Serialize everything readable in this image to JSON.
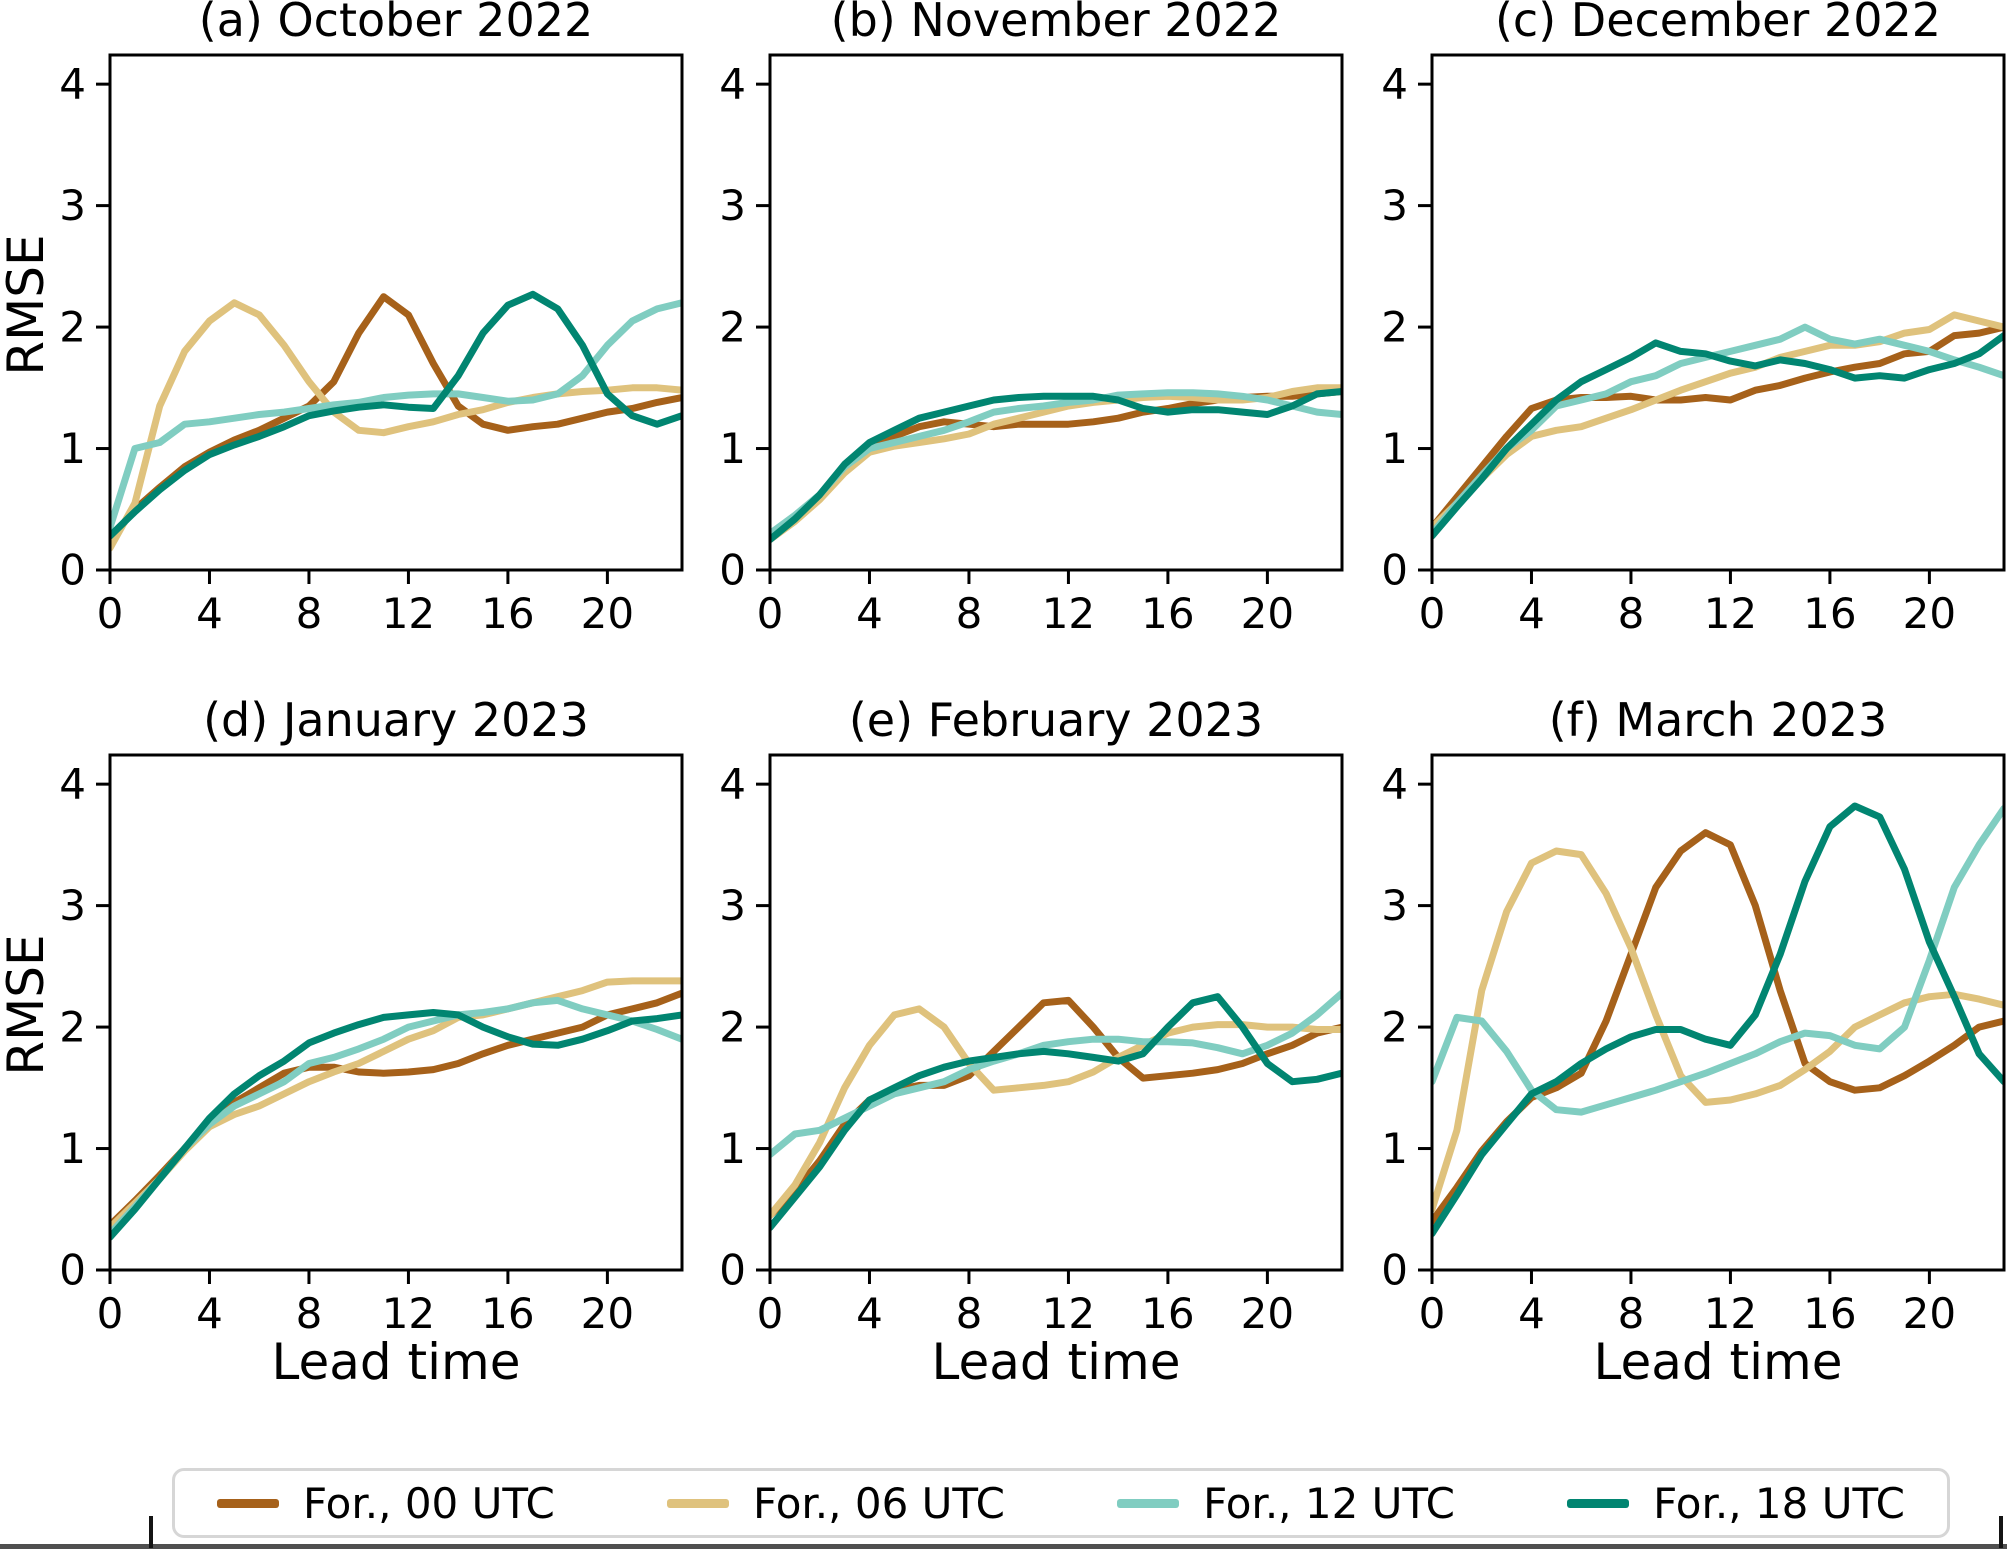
{
  "figure": {
    "ylabel": "RMSE",
    "xlabel": "Lead time",
    "background": "#ffffff"
  },
  "legend": {
    "position": "bottom",
    "entries": [
      {
        "label": "For., 00 UTC",
        "color": "#a6611a"
      },
      {
        "label": "For., 06 UTC",
        "color": "#dfc27d"
      },
      {
        "label": "For., 12 UTC",
        "color": "#80cdc1"
      },
      {
        "label": "For., 18 UTC",
        "color": "#018571"
      }
    ]
  },
  "lead_times": [
    0,
    1,
    2,
    3,
    4,
    5,
    6,
    7,
    8,
    9,
    10,
    11,
    12,
    13,
    14,
    15,
    16,
    17,
    18,
    19,
    20,
    21,
    22,
    23
  ],
  "chart_data": [
    {
      "id": "a",
      "type": "line",
      "title": "(a) October 2022",
      "xlim": [
        0,
        23
      ],
      "ylim": [
        0,
        4.24
      ],
      "x_ticks": [
        0,
        4,
        8,
        12,
        16,
        20
      ],
      "y_ticks": [
        0,
        1,
        2,
        3,
        4
      ],
      "grid": false,
      "series": [
        {
          "name": "For., 00 UTC",
          "color": "#a6611a",
          "values": [
            0.25,
            0.5,
            0.68,
            0.85,
            0.97,
            1.07,
            1.15,
            1.25,
            1.35,
            1.55,
            1.95,
            2.25,
            2.1,
            1.7,
            1.35,
            1.2,
            1.15,
            1.18,
            1.2,
            1.25,
            1.3,
            1.33,
            1.38,
            1.42
          ]
        },
        {
          "name": "For., 06 UTC",
          "color": "#dfc27d",
          "values": [
            0.18,
            0.55,
            1.35,
            1.8,
            2.05,
            2.2,
            2.1,
            1.85,
            1.55,
            1.3,
            1.15,
            1.13,
            1.18,
            1.22,
            1.28,
            1.32,
            1.38,
            1.42,
            1.45,
            1.47,
            1.48,
            1.5,
            1.5,
            1.48
          ]
        },
        {
          "name": "For., 12 UTC",
          "color": "#80cdc1",
          "values": [
            0.35,
            1.0,
            1.05,
            1.2,
            1.22,
            1.25,
            1.28,
            1.3,
            1.33,
            1.36,
            1.38,
            1.42,
            1.44,
            1.45,
            1.45,
            1.42,
            1.39,
            1.4,
            1.45,
            1.6,
            1.85,
            2.05,
            2.15,
            2.2
          ]
        },
        {
          "name": "For., 18 UTC",
          "color": "#018571",
          "values": [
            0.28,
            0.48,
            0.66,
            0.82,
            0.95,
            1.03,
            1.1,
            1.18,
            1.27,
            1.31,
            1.34,
            1.36,
            1.34,
            1.33,
            1.6,
            1.95,
            2.18,
            2.27,
            2.15,
            1.85,
            1.45,
            1.27,
            1.2,
            1.27
          ]
        }
      ]
    },
    {
      "id": "b",
      "type": "line",
      "title": "(b) November 2022",
      "xlim": [
        0,
        23
      ],
      "ylim": [
        0,
        4.24
      ],
      "x_ticks": [
        0,
        4,
        8,
        12,
        16,
        20
      ],
      "y_ticks": [
        0,
        1,
        2,
        3,
        4
      ],
      "grid": false,
      "series": [
        {
          "name": "For., 00 UTC",
          "color": "#a6611a",
          "values": [
            0.27,
            0.42,
            0.6,
            0.83,
            1.0,
            1.1,
            1.18,
            1.22,
            1.2,
            1.18,
            1.2,
            1.2,
            1.2,
            1.22,
            1.25,
            1.3,
            1.33,
            1.37,
            1.4,
            1.42,
            1.43,
            1.43,
            1.45,
            1.47
          ]
        },
        {
          "name": "For., 06 UTC",
          "color": "#dfc27d",
          "values": [
            0.25,
            0.4,
            0.58,
            0.8,
            0.97,
            1.02,
            1.05,
            1.08,
            1.12,
            1.2,
            1.25,
            1.3,
            1.35,
            1.38,
            1.4,
            1.42,
            1.43,
            1.42,
            1.4,
            1.4,
            1.42,
            1.47,
            1.5,
            1.5
          ]
        },
        {
          "name": "For., 12 UTC",
          "color": "#80cdc1",
          "values": [
            0.3,
            0.45,
            0.62,
            0.85,
            1.0,
            1.05,
            1.1,
            1.15,
            1.22,
            1.3,
            1.33,
            1.35,
            1.38,
            1.4,
            1.44,
            1.45,
            1.46,
            1.46,
            1.45,
            1.43,
            1.4,
            1.35,
            1.3,
            1.28
          ]
        },
        {
          "name": "For., 18 UTC",
          "color": "#018571",
          "values": [
            0.25,
            0.42,
            0.62,
            0.87,
            1.05,
            1.15,
            1.25,
            1.3,
            1.35,
            1.4,
            1.42,
            1.43,
            1.43,
            1.43,
            1.4,
            1.33,
            1.3,
            1.32,
            1.32,
            1.3,
            1.28,
            1.35,
            1.45,
            1.47
          ]
        }
      ]
    },
    {
      "id": "c",
      "type": "line",
      "title": "(c) December 2022",
      "xlim": [
        0,
        23
      ],
      "ylim": [
        0,
        4.24
      ],
      "x_ticks": [
        0,
        4,
        8,
        12,
        16,
        20
      ],
      "y_ticks": [
        0,
        1,
        2,
        3,
        4
      ],
      "grid": false,
      "series": [
        {
          "name": "For., 00 UTC",
          "color": "#a6611a",
          "values": [
            0.35,
            0.6,
            0.85,
            1.1,
            1.33,
            1.4,
            1.42,
            1.42,
            1.43,
            1.4,
            1.4,
            1.42,
            1.4,
            1.48,
            1.52,
            1.58,
            1.63,
            1.67,
            1.7,
            1.78,
            1.8,
            1.93,
            1.95,
            2.0
          ]
        },
        {
          "name": "For., 06 UTC",
          "color": "#dfc27d",
          "values": [
            0.35,
            0.55,
            0.75,
            0.95,
            1.1,
            1.15,
            1.18,
            1.25,
            1.32,
            1.4,
            1.48,
            1.55,
            1.62,
            1.67,
            1.75,
            1.8,
            1.85,
            1.85,
            1.88,
            1.95,
            1.98,
            2.1,
            2.05,
            2.0
          ]
        },
        {
          "name": "For., 12 UTC",
          "color": "#80cdc1",
          "values": [
            0.3,
            0.55,
            0.78,
            1.0,
            1.15,
            1.35,
            1.4,
            1.45,
            1.55,
            1.6,
            1.7,
            1.75,
            1.8,
            1.85,
            1.9,
            2.0,
            1.9,
            1.86,
            1.9,
            1.85,
            1.8,
            1.73,
            1.67,
            1.6
          ]
        },
        {
          "name": "For., 18 UTC",
          "color": "#018571",
          "values": [
            0.28,
            0.52,
            0.75,
            1.0,
            1.2,
            1.4,
            1.55,
            1.65,
            1.75,
            1.87,
            1.8,
            1.78,
            1.72,
            1.68,
            1.73,
            1.7,
            1.65,
            1.58,
            1.6,
            1.58,
            1.65,
            1.7,
            1.78,
            1.93
          ]
        }
      ]
    },
    {
      "id": "d",
      "type": "line",
      "title": "(d) January 2023",
      "xlim": [
        0,
        23
      ],
      "ylim": [
        0,
        4.24
      ],
      "x_ticks": [
        0,
        4,
        8,
        12,
        16,
        20
      ],
      "y_ticks": [
        0,
        1,
        2,
        3,
        4
      ],
      "grid": false,
      "series": [
        {
          "name": "For., 00 UTC",
          "color": "#a6611a",
          "values": [
            0.37,
            0.57,
            0.78,
            1.0,
            1.22,
            1.38,
            1.5,
            1.62,
            1.67,
            1.67,
            1.63,
            1.62,
            1.63,
            1.65,
            1.7,
            1.78,
            1.85,
            1.9,
            1.95,
            2.0,
            2.1,
            2.15,
            2.2,
            2.28
          ]
        },
        {
          "name": "For., 06 UTC",
          "color": "#dfc27d",
          "values": [
            0.35,
            0.55,
            0.75,
            0.98,
            1.18,
            1.28,
            1.35,
            1.45,
            1.55,
            1.63,
            1.7,
            1.8,
            1.9,
            1.97,
            2.08,
            2.1,
            2.15,
            2.2,
            2.25,
            2.3,
            2.37,
            2.38,
            2.38,
            2.38
          ]
        },
        {
          "name": "For., 12 UTC",
          "color": "#80cdc1",
          "values": [
            0.3,
            0.52,
            0.75,
            1.0,
            1.2,
            1.35,
            1.45,
            1.55,
            1.7,
            1.75,
            1.82,
            1.9,
            2.0,
            2.05,
            2.1,
            2.12,
            2.15,
            2.2,
            2.22,
            2.15,
            2.1,
            2.05,
            1.98,
            1.9
          ]
        },
        {
          "name": "For., 18 UTC",
          "color": "#018571",
          "values": [
            0.27,
            0.5,
            0.75,
            1.0,
            1.25,
            1.45,
            1.6,
            1.72,
            1.87,
            1.95,
            2.02,
            2.08,
            2.1,
            2.12,
            2.1,
            2.0,
            1.92,
            1.86,
            1.85,
            1.9,
            1.97,
            2.05,
            2.07,
            2.1
          ]
        }
      ]
    },
    {
      "id": "e",
      "type": "line",
      "title": "(e) February 2023",
      "xlim": [
        0,
        23
      ],
      "ylim": [
        0,
        4.24
      ],
      "x_ticks": [
        0,
        4,
        8,
        12,
        16,
        20
      ],
      "y_ticks": [
        0,
        1,
        2,
        3,
        4
      ],
      "grid": false,
      "series": [
        {
          "name": "For., 00 UTC",
          "color": "#a6611a",
          "values": [
            0.45,
            0.65,
            0.9,
            1.2,
            1.4,
            1.48,
            1.52,
            1.52,
            1.6,
            1.8,
            2.0,
            2.2,
            2.22,
            2.0,
            1.75,
            1.58,
            1.6,
            1.62,
            1.65,
            1.7,
            1.78,
            1.85,
            1.95,
            2.0
          ]
        },
        {
          "name": "For., 06 UTC",
          "color": "#dfc27d",
          "values": [
            0.45,
            0.7,
            1.05,
            1.5,
            1.85,
            2.1,
            2.15,
            2.0,
            1.7,
            1.48,
            1.5,
            1.52,
            1.55,
            1.63,
            1.75,
            1.85,
            1.95,
            2.0,
            2.02,
            2.02,
            2.0,
            2.0,
            1.98,
            1.98
          ]
        },
        {
          "name": "For., 12 UTC",
          "color": "#80cdc1",
          "values": [
            0.95,
            1.12,
            1.15,
            1.25,
            1.35,
            1.45,
            1.5,
            1.55,
            1.65,
            1.72,
            1.78,
            1.85,
            1.88,
            1.9,
            1.9,
            1.88,
            1.88,
            1.87,
            1.83,
            1.78,
            1.85,
            1.95,
            2.1,
            2.28
          ]
        },
        {
          "name": "For., 18 UTC",
          "color": "#018571",
          "values": [
            0.35,
            0.6,
            0.85,
            1.15,
            1.4,
            1.5,
            1.6,
            1.67,
            1.72,
            1.75,
            1.78,
            1.8,
            1.78,
            1.75,
            1.72,
            1.78,
            2.0,
            2.2,
            2.25,
            2.0,
            1.7,
            1.55,
            1.57,
            1.62
          ]
        }
      ]
    },
    {
      "id": "f",
      "type": "line",
      "title": "(f) March 2023",
      "xlim": [
        0,
        23
      ],
      "ylim": [
        0,
        4.24
      ],
      "x_ticks": [
        0,
        4,
        8,
        12,
        16,
        20
      ],
      "y_ticks": [
        0,
        1,
        2,
        3,
        4
      ],
      "grid": false,
      "series": [
        {
          "name": "For., 00 UTC",
          "color": "#a6611a",
          "values": [
            0.4,
            0.68,
            0.98,
            1.22,
            1.42,
            1.5,
            1.62,
            2.05,
            2.6,
            3.15,
            3.45,
            3.6,
            3.5,
            3.0,
            2.3,
            1.7,
            1.55,
            1.48,
            1.5,
            1.6,
            1.72,
            1.85,
            2.0,
            2.05
          ]
        },
        {
          "name": "For., 06 UTC",
          "color": "#dfc27d",
          "values": [
            0.5,
            1.15,
            2.3,
            2.95,
            3.35,
            3.45,
            3.42,
            3.1,
            2.65,
            2.1,
            1.6,
            1.38,
            1.4,
            1.45,
            1.52,
            1.65,
            1.8,
            2.0,
            2.1,
            2.2,
            2.25,
            2.27,
            2.23,
            2.18
          ]
        },
        {
          "name": "For., 12 UTC",
          "color": "#80cdc1",
          "values": [
            1.55,
            2.08,
            2.05,
            1.8,
            1.48,
            1.32,
            1.3,
            1.36,
            1.42,
            1.48,
            1.55,
            1.62,
            1.7,
            1.78,
            1.88,
            1.95,
            1.93,
            1.85,
            1.82,
            2.0,
            2.55,
            3.15,
            3.5,
            3.8
          ]
        },
        {
          "name": "For., 18 UTC",
          "color": "#018571",
          "values": [
            0.3,
            0.62,
            0.95,
            1.2,
            1.45,
            1.55,
            1.7,
            1.82,
            1.92,
            1.98,
            1.98,
            1.9,
            1.85,
            2.1,
            2.6,
            3.2,
            3.65,
            3.82,
            3.73,
            3.3,
            2.7,
            2.25,
            1.78,
            1.55
          ]
        }
      ]
    }
  ]
}
